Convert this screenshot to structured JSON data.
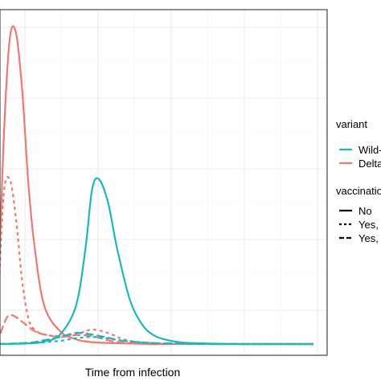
{
  "chart_data": {
    "type": "line",
    "title": "",
    "xlabel": "Time from infection",
    "ylabel": "",
    "xlim": [
      0,
      1
    ],
    "ylim": [
      0,
      1
    ],
    "grid": true,
    "legend_placement": "right",
    "colors": {
      "Wild-type": "#1fb5b9",
      "Delta": "#ef7870"
    },
    "legend": {
      "variant_title": "variant",
      "variant_items": [
        {
          "label": "Wild-type",
          "color": "#1fb5b9"
        },
        {
          "label": "Delta",
          "color": "#ef7870"
        }
      ],
      "vaccination_title": "vaccination",
      "vaccination_items": [
        {
          "label": "No",
          "dash": "solid"
        },
        {
          "label": "Yes, early",
          "dash": "short-dash"
        },
        {
          "label": "Yes, late",
          "dash": "long-dash"
        }
      ]
    },
    "series": [
      {
        "variant": "Delta",
        "vaccination": "No",
        "x": [
          0,
          0.02,
          0.04,
          0.06,
          0.08,
          0.1,
          0.12,
          0.15,
          0.2,
          0.25,
          0.3,
          0.4,
          0.5,
          0.6,
          0.8,
          1.0
        ],
        "y": [
          0,
          0.6,
          0.95,
          0.98,
          0.8,
          0.5,
          0.3,
          0.12,
          0.04,
          0.015,
          0.006,
          0.002,
          0,
          0,
          0,
          0
        ]
      },
      {
        "variant": "Delta",
        "vaccination": "Yes, early",
        "x": [
          0,
          0.02,
          0.04,
          0.06,
          0.08,
          0.1,
          0.12,
          0.15,
          0.2,
          0.25,
          0.3,
          0.35,
          0.4,
          0.45,
          0.5,
          0.6,
          0.8,
          1.0
        ],
        "y": [
          0,
          0.45,
          0.52,
          0.4,
          0.2,
          0.08,
          0.045,
          0.03,
          0.025,
          0.03,
          0.045,
          0.035,
          0.015,
          0.005,
          0.002,
          0,
          0,
          0
        ]
      },
      {
        "variant": "Delta",
        "vaccination": "Yes, late",
        "x": [
          0,
          0.03,
          0.05,
          0.08,
          0.12,
          0.15,
          0.2,
          0.25,
          0.3,
          0.35,
          0.4,
          0.5,
          0.6,
          0.8,
          1.0
        ],
        "y": [
          0,
          0.08,
          0.09,
          0.07,
          0.04,
          0.03,
          0.022,
          0.028,
          0.025,
          0.012,
          0.004,
          0,
          0,
          0,
          0
        ]
      },
      {
        "variant": "Wild-type",
        "vaccination": "No",
        "x": [
          0,
          0.1,
          0.15,
          0.2,
          0.25,
          0.28,
          0.3,
          0.32,
          0.35,
          0.38,
          0.42,
          0.46,
          0.5,
          0.55,
          0.6,
          0.7,
          0.8,
          1.0
        ],
        "y": [
          0,
          0.002,
          0.008,
          0.03,
          0.12,
          0.3,
          0.48,
          0.52,
          0.45,
          0.3,
          0.14,
          0.06,
          0.025,
          0.01,
          0.004,
          0.001,
          0,
          0
        ]
      },
      {
        "variant": "Wild-type",
        "vaccination": "Yes, early",
        "x": [
          0,
          0.1,
          0.15,
          0.2,
          0.25,
          0.3,
          0.35,
          0.4,
          0.5,
          0.6,
          0.8,
          1.0
        ],
        "y": [
          0,
          0.002,
          0.006,
          0.01,
          0.018,
          0.022,
          0.018,
          0.01,
          0.003,
          0.001,
          0,
          0
        ]
      },
      {
        "variant": "Wild-type",
        "vaccination": "Yes, late",
        "x": [
          0,
          0.1,
          0.15,
          0.2,
          0.25,
          0.3,
          0.35,
          0.4,
          0.5,
          0.6,
          0.8,
          1.0
        ],
        "y": [
          0,
          0.004,
          0.012,
          0.022,
          0.035,
          0.03,
          0.02,
          0.01,
          0.003,
          0.001,
          0,
          0
        ]
      }
    ]
  }
}
